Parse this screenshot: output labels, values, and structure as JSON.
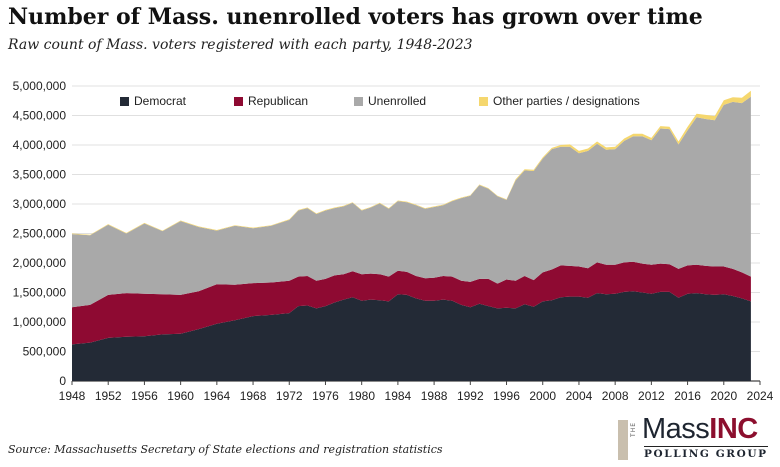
{
  "header": {
    "title": "Number of Mass. unenrolled voters has grown over time",
    "subtitle": "Raw count of Mass. voters registered with each party, 1948-2023"
  },
  "footer": {
    "source": "Source: Massachusetts Secretary of State elections and registration statistics"
  },
  "logo": {
    "the": "THE",
    "mass": "Mass",
    "inc": "INC",
    "sub": "POLLING GROUP"
  },
  "colors": {
    "Democrat": "#232a36",
    "Republican": "#8e0a32",
    "Unenrolled": "#a9a9a9",
    "Other": "#f5d76e"
  },
  "chart_data": {
    "type": "area",
    "stacked": true,
    "title": "Number of Mass. unenrolled voters has grown over time",
    "subtitle": "Raw count of Mass. voters registered with each party, 1948-2023",
    "xlim": [
      1948,
      2024
    ],
    "ylim": [
      0,
      5000000
    ],
    "x_ticks": [
      1948,
      1952,
      1956,
      1960,
      1964,
      1968,
      1972,
      1976,
      1980,
      1984,
      1988,
      1992,
      1996,
      2000,
      2004,
      2008,
      2012,
      2016,
      2020,
      2024
    ],
    "y_ticks": [
      0,
      500000,
      1000000,
      1500000,
      2000000,
      2500000,
      3000000,
      3500000,
      4000000,
      4500000,
      5000000
    ],
    "y_tick_labels": [
      "0",
      "500,000",
      "1,000,000",
      "1,500,000",
      "2,000,000",
      "2,500,000",
      "3,000,000",
      "3,500,000",
      "4,000,000",
      "4,500,000",
      "5,000,000"
    ],
    "grid": true,
    "legend_position": "top",
    "x": [
      1948,
      1950,
      1952,
      1954,
      1956,
      1958,
      1960,
      1962,
      1964,
      1966,
      1968,
      1970,
      1972,
      1973,
      1974,
      1975,
      1976,
      1977,
      1978,
      1979,
      1980,
      1981,
      1982,
      1983,
      1984,
      1985,
      1986,
      1987,
      1988,
      1989,
      1990,
      1991,
      1992,
      1993,
      1994,
      1995,
      1996,
      1997,
      1998,
      1999,
      2000,
      2001,
      2002,
      2003,
      2004,
      2005,
      2006,
      2007,
      2008,
      2009,
      2010,
      2011,
      2012,
      2013,
      2014,
      2015,
      2016,
      2017,
      2018,
      2019,
      2020,
      2021,
      2022,
      2023
    ],
    "series": [
      {
        "name": "Democrat",
        "values": [
          620000,
          650000,
          730000,
          750000,
          760000,
          790000,
          800000,
          880000,
          970000,
          1030000,
          1100000,
          1120000,
          1150000,
          1270000,
          1280000,
          1230000,
          1270000,
          1330000,
          1380000,
          1420000,
          1360000,
          1380000,
          1370000,
          1350000,
          1470000,
          1460000,
          1400000,
          1360000,
          1360000,
          1380000,
          1360000,
          1290000,
          1250000,
          1310000,
          1270000,
          1230000,
          1240000,
          1230000,
          1300000,
          1260000,
          1350000,
          1370000,
          1420000,
          1430000,
          1430000,
          1410000,
          1490000,
          1470000,
          1480000,
          1510000,
          1520000,
          1500000,
          1480000,
          1510000,
          1510000,
          1410000,
          1480000,
          1490000,
          1470000,
          1460000,
          1470000,
          1440000,
          1400000,
          1350000
        ]
      },
      {
        "name": "Republican",
        "values": [
          630000,
          640000,
          730000,
          740000,
          720000,
          680000,
          660000,
          640000,
          670000,
          600000,
          560000,
          550000,
          550000,
          500000,
          500000,
          470000,
          460000,
          460000,
          430000,
          440000,
          450000,
          440000,
          440000,
          420000,
          400000,
          390000,
          380000,
          380000,
          390000,
          400000,
          410000,
          410000,
          430000,
          420000,
          460000,
          420000,
          480000,
          470000,
          480000,
          450000,
          490000,
          520000,
          540000,
          520000,
          510000,
          500000,
          520000,
          500000,
          490000,
          500000,
          500000,
          490000,
          490000,
          480000,
          470000,
          490000,
          480000,
          480000,
          480000,
          480000,
          470000,
          460000,
          440000,
          420000
        ]
      },
      {
        "name": "Unenrolled",
        "values": [
          1240000,
          1180000,
          1190000,
          1010000,
          1190000,
          1070000,
          1250000,
          1090000,
          910000,
          1000000,
          930000,
          960000,
          1030000,
          1120000,
          1150000,
          1130000,
          1160000,
          1140000,
          1150000,
          1160000,
          1080000,
          1120000,
          1200000,
          1150000,
          1180000,
          1180000,
          1200000,
          1180000,
          1200000,
          1200000,
          1280000,
          1400000,
          1460000,
          1590000,
          1530000,
          1480000,
          1350000,
          1700000,
          1790000,
          1850000,
          1930000,
          2040000,
          2010000,
          2020000,
          1920000,
          1990000,
          2010000,
          1950000,
          1960000,
          2060000,
          2130000,
          2160000,
          2110000,
          2290000,
          2290000,
          2110000,
          2290000,
          2500000,
          2490000,
          2480000,
          2740000,
          2830000,
          2870000,
          3050000
        ]
      },
      {
        "name": "Other parties / designations",
        "values": [
          10000,
          10000,
          10000,
          10000,
          10000,
          10000,
          10000,
          10000,
          10000,
          10000,
          10000,
          10000,
          10000,
          10000,
          10000,
          10000,
          10000,
          10000,
          10000,
          10000,
          10000,
          10000,
          10000,
          10000,
          10000,
          10000,
          10000,
          10000,
          10000,
          10000,
          10000,
          10000,
          10000,
          10000,
          10000,
          10000,
          10000,
          20000,
          20000,
          20000,
          20000,
          20000,
          30000,
          40000,
          40000,
          40000,
          40000,
          40000,
          40000,
          40000,
          40000,
          40000,
          40000,
          40000,
          40000,
          50000,
          60000,
          60000,
          70000,
          70000,
          80000,
          80000,
          90000,
          100000
        ]
      }
    ]
  }
}
